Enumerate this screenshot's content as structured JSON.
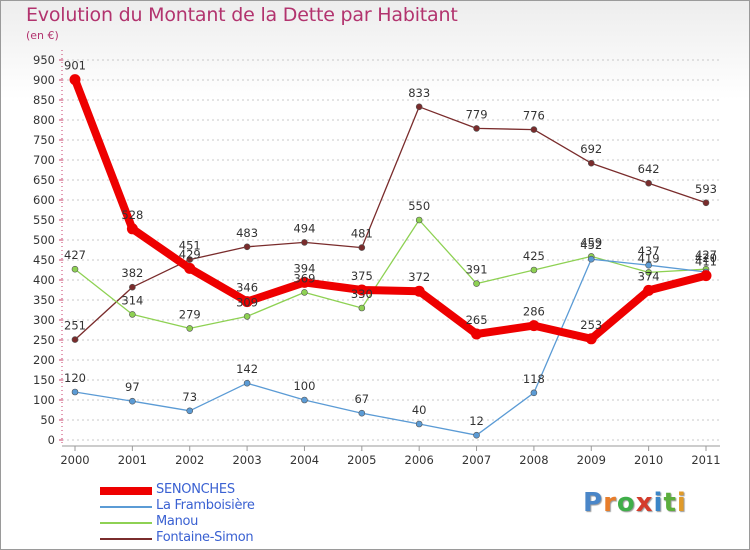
{
  "title": "Evolution du Montant de la Dette par Habitant",
  "subtitle": "(en €)",
  "logo": {
    "letters": [
      "P",
      "r",
      "o",
      "x",
      "i",
      "t",
      "i"
    ],
    "colors": [
      "#4a86c8",
      "#e87d2a",
      "#3fae49",
      "#d43c2c",
      "#3a86c8",
      "#5cae3c",
      "#e09a2a"
    ]
  },
  "chart_data": {
    "type": "line",
    "x": [
      "2000",
      "2001",
      "2002",
      "2003",
      "2004",
      "2005",
      "2006",
      "2007",
      "2008",
      "2009",
      "2010",
      "2011"
    ],
    "ylim": [
      0,
      950
    ],
    "yticks": [
      0,
      50,
      100,
      150,
      200,
      250,
      300,
      350,
      400,
      450,
      500,
      550,
      600,
      650,
      700,
      750,
      800,
      850,
      900,
      950
    ],
    "grid": "horizontal dashed",
    "legend_position": "bottom-left",
    "series": [
      {
        "name": "SENONCHES",
        "color": "#ee0000",
        "values": [
          901,
          528,
          429,
          346,
          394,
          375,
          372,
          265,
          286,
          253,
          374,
          411
        ]
      },
      {
        "name": "La Framboisière",
        "color": "#5b9bd5",
        "values": [
          120,
          97,
          73,
          142,
          100,
          67,
          40,
          12,
          118,
          452,
          437,
          420
        ]
      },
      {
        "name": "Manou",
        "color": "#8ed153",
        "values": [
          427,
          314,
          279,
          309,
          369,
          330,
          550,
          391,
          425,
          459,
          419,
          427
        ]
      },
      {
        "name": "Fontaine-Simon",
        "color": "#7a2c2c",
        "values": [
          251,
          382,
          451,
          483,
          494,
          481,
          833,
          779,
          776,
          692,
          642,
          593
        ]
      }
    ],
    "data_labels": {
      "SENONCHES": [
        "901",
        "528",
        "429",
        "346",
        "394",
        "375",
        "372",
        "265",
        "286",
        "253",
        "374",
        "411"
      ],
      "La Framboisière": [
        "120",
        "97",
        "73",
        "142",
        "100",
        "67",
        "40",
        "12",
        "118",
        "452",
        "437",
        "420"
      ],
      "Manou": [
        "427",
        "314",
        "279",
        "309",
        "369",
        "330",
        "550",
        "391",
        "425",
        "459",
        "419",
        "427"
      ],
      "Fontaine-Simon": [
        "251",
        "382",
        "451",
        "483",
        "494",
        "481",
        "833",
        "779",
        "776",
        "692",
        "642",
        "593"
      ]
    }
  }
}
